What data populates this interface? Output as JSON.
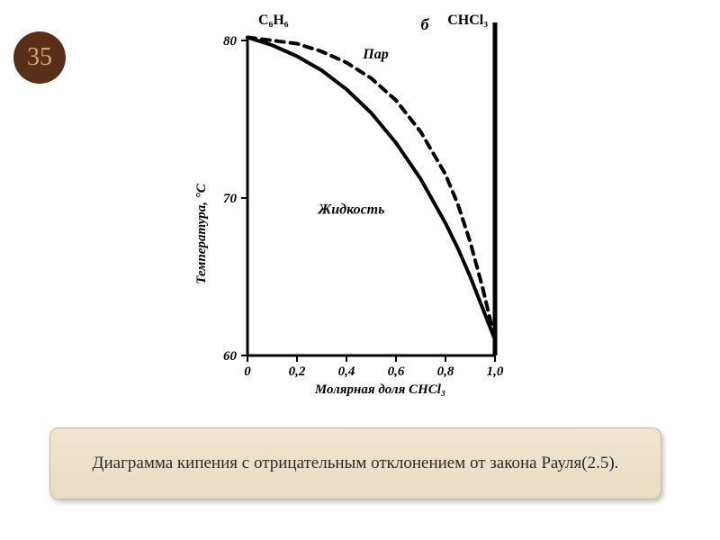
{
  "slide_number": "35",
  "caption": "Диаграмма кипения с отрицательным отклонением от закона Рауля(2.5).",
  "chart": {
    "type": "line",
    "left_species": "C₆H₆",
    "right_species": "CHCl₃",
    "subfig_label": "б",
    "region_vapor": "Пар",
    "region_liquid": "Жидкость",
    "ylabel": "Температура, °С",
    "xlabel": "Молярная доля CHCl₃",
    "ylim": [
      60,
      80
    ],
    "yticks": [
      60,
      70,
      80
    ],
    "ytick_labels": [
      "60",
      "70",
      "80"
    ],
    "xlim": [
      0,
      1.0
    ],
    "xticks": [
      0,
      0.2,
      0.4,
      0.6,
      0.8,
      1.0
    ],
    "xtick_labels": [
      "0",
      "0,2",
      "0,4",
      "0,6",
      "0,8",
      "1,0"
    ],
    "tick_fontsize": 15,
    "label_fontsize": 15,
    "species_fontsize": 16,
    "region_fontsize": 16,
    "axis_color": "#000000",
    "axis_width": 3,
    "right_axis_width": 5,
    "line_color": "#000000",
    "solid_width": 4,
    "dash_width": 4,
    "dash_pattern": "9,7",
    "background_color": "#ffffff",
    "solid_curve": [
      {
        "x": 0.0,
        "y": 80.2
      },
      {
        "x": 0.1,
        "y": 79.7
      },
      {
        "x": 0.2,
        "y": 79.0
      },
      {
        "x": 0.3,
        "y": 78.1
      },
      {
        "x": 0.4,
        "y": 76.9
      },
      {
        "x": 0.5,
        "y": 75.4
      },
      {
        "x": 0.6,
        "y": 73.5
      },
      {
        "x": 0.7,
        "y": 71.2
      },
      {
        "x": 0.8,
        "y": 68.4
      },
      {
        "x": 0.85,
        "y": 66.8
      },
      {
        "x": 0.9,
        "y": 65.0
      },
      {
        "x": 0.95,
        "y": 63.0
      },
      {
        "x": 1.0,
        "y": 61.0
      }
    ],
    "dashed_curve": [
      {
        "x": 0.0,
        "y": 80.2
      },
      {
        "x": 0.1,
        "y": 80.0
      },
      {
        "x": 0.2,
        "y": 79.8
      },
      {
        "x": 0.3,
        "y": 79.3
      },
      {
        "x": 0.4,
        "y": 78.6
      },
      {
        "x": 0.5,
        "y": 77.6
      },
      {
        "x": 0.6,
        "y": 76.2
      },
      {
        "x": 0.7,
        "y": 74.2
      },
      {
        "x": 0.8,
        "y": 71.5
      },
      {
        "x": 0.85,
        "y": 69.6
      },
      {
        "x": 0.9,
        "y": 67.2
      },
      {
        "x": 0.95,
        "y": 64.3
      },
      {
        "x": 1.0,
        "y": 61.0
      }
    ]
  }
}
